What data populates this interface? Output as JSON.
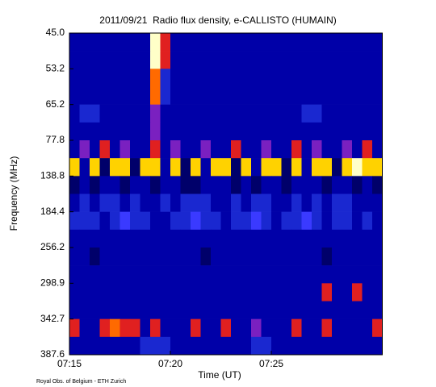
{
  "chart_data": {
    "type": "heatmap",
    "title": "2011/09/21  Radio flux density, e-CALLISTO (HUMAIN)",
    "x_label": "Time (UT)",
    "y_label": "Frequency (MHz)",
    "footer": "Royal Obs. of Belgium - ETH Zurich",
    "xlim": [
      0,
      15.5
    ],
    "xticks": [
      {
        "value": 0,
        "label": "07:15"
      },
      {
        "value": 5,
        "label": "07:20"
      },
      {
        "value": 10,
        "label": "07:25"
      }
    ],
    "yticks": [
      {
        "value": 45,
        "label": "45.0"
      },
      {
        "value": 53.2,
        "label": "53.2"
      },
      {
        "value": 65.2,
        "label": "65.2"
      },
      {
        "value": 77.8,
        "label": "77.8"
      },
      {
        "value": 138.8,
        "label": "138.8"
      },
      {
        "value": 184.4,
        "label": "184.4"
      },
      {
        "value": 256.2,
        "label": "256.2"
      },
      {
        "value": 298.9,
        "label": "298.9"
      },
      {
        "value": 342.7,
        "label": "342.7"
      },
      {
        "value": 387.6,
        "label": "387.6"
      }
    ],
    "x": [
      0,
      0.5,
      1,
      1.5,
      2,
      2.5,
      3,
      3.5,
      4,
      4.5,
      5,
      5.5,
      6,
      6.5,
      7,
      7.5,
      8,
      8.5,
      9,
      9.5,
      10,
      10.5,
      11,
      11.5,
      12,
      12.5,
      13,
      13.5,
      14,
      14.5,
      15
    ],
    "colorscale": [
      "#000000",
      "#00006a",
      "#0000a8",
      "#1a28d0",
      "#3a3aff",
      "#7a20c0",
      "#e02020",
      "#ff6a00",
      "#ffd200",
      "#ffffc8"
    ],
    "z": [
      [
        2,
        2,
        2,
        2,
        2,
        2,
        2,
        2,
        9,
        6,
        2,
        2,
        2,
        2,
        2,
        2,
        2,
        2,
        2,
        2,
        2,
        2,
        2,
        2,
        2,
        2,
        2,
        2,
        2,
        2,
        2
      ],
      [
        2,
        2,
        2,
        2,
        2,
        2,
        2,
        2,
        9,
        6,
        2,
        2,
        2,
        2,
        2,
        2,
        2,
        2,
        2,
        2,
        2,
        2,
        2,
        2,
        2,
        2,
        2,
        2,
        2,
        2,
        2
      ],
      [
        2,
        2,
        2,
        2,
        2,
        2,
        2,
        2,
        7,
        3,
        2,
        2,
        2,
        2,
        2,
        2,
        2,
        2,
        2,
        2,
        2,
        2,
        2,
        2,
        2,
        2,
        2,
        2,
        2,
        2,
        2
      ],
      [
        2,
        2,
        2,
        2,
        2,
        2,
        2,
        2,
        7,
        3,
        2,
        2,
        2,
        2,
        2,
        2,
        2,
        2,
        2,
        2,
        2,
        2,
        2,
        2,
        2,
        2,
        2,
        2,
        2,
        2,
        2
      ],
      [
        2,
        3,
        3,
        2,
        2,
        2,
        2,
        2,
        5,
        2,
        2,
        2,
        2,
        2,
        2,
        2,
        2,
        2,
        2,
        2,
        2,
        2,
        2,
        3,
        3,
        2,
        2,
        2,
        2,
        2,
        2
      ],
      [
        2,
        2,
        2,
        2,
        2,
        2,
        2,
        2,
        5,
        2,
        2,
        2,
        2,
        2,
        2,
        2,
        2,
        2,
        2,
        2,
        2,
        2,
        2,
        2,
        2,
        2,
        2,
        2,
        2,
        2,
        2
      ],
      [
        2,
        5,
        2,
        6,
        2,
        5,
        2,
        2,
        6,
        2,
        5,
        2,
        2,
        5,
        2,
        2,
        6,
        2,
        2,
        5,
        2,
        2,
        6,
        2,
        5,
        2,
        2,
        5,
        2,
        6,
        2
      ],
      [
        8,
        2,
        8,
        1,
        8,
        8,
        1,
        8,
        8,
        2,
        8,
        1,
        8,
        2,
        8,
        8,
        1,
        8,
        2,
        8,
        8,
        1,
        8,
        2,
        8,
        8,
        1,
        8,
        9,
        8,
        8
      ],
      [
        1,
        2,
        1,
        2,
        2,
        1,
        2,
        2,
        1,
        2,
        2,
        1,
        1,
        2,
        2,
        2,
        1,
        2,
        1,
        2,
        2,
        1,
        2,
        2,
        2,
        1,
        2,
        2,
        1,
        2,
        1
      ],
      [
        2,
        3,
        2,
        3,
        3,
        2,
        3,
        2,
        2,
        3,
        2,
        3,
        3,
        3,
        2,
        2,
        3,
        2,
        3,
        3,
        2,
        2,
        3,
        2,
        3,
        2,
        3,
        3,
        2,
        2,
        2
      ],
      [
        3,
        3,
        3,
        2,
        3,
        4,
        3,
        3,
        2,
        2,
        3,
        3,
        4,
        3,
        3,
        2,
        3,
        3,
        4,
        3,
        2,
        3,
        3,
        4,
        3,
        2,
        3,
        3,
        2,
        3,
        2
      ],
      [
        2,
        2,
        2,
        2,
        2,
        2,
        2,
        2,
        2,
        2,
        2,
        2,
        2,
        2,
        2,
        2,
        2,
        2,
        2,
        2,
        2,
        2,
        2,
        2,
        2,
        2,
        2,
        2,
        2,
        2,
        2
      ],
      [
        2,
        2,
        1,
        2,
        2,
        2,
        2,
        2,
        2,
        2,
        2,
        2,
        2,
        1,
        2,
        2,
        2,
        2,
        2,
        2,
        2,
        2,
        2,
        2,
        2,
        1,
        2,
        2,
        2,
        2,
        2
      ],
      [
        2,
        2,
        2,
        2,
        2,
        2,
        2,
        2,
        2,
        2,
        2,
        2,
        2,
        2,
        2,
        2,
        2,
        2,
        2,
        2,
        2,
        2,
        2,
        2,
        2,
        2,
        2,
        2,
        2,
        2,
        2
      ],
      [
        2,
        2,
        2,
        2,
        2,
        2,
        2,
        2,
        2,
        2,
        2,
        2,
        2,
        2,
        2,
        2,
        2,
        2,
        2,
        2,
        2,
        2,
        2,
        2,
        2,
        6,
        2,
        2,
        6,
        2,
        2
      ],
      [
        2,
        2,
        2,
        2,
        2,
        2,
        2,
        2,
        2,
        2,
        2,
        2,
        2,
        2,
        2,
        2,
        2,
        2,
        2,
        2,
        2,
        2,
        2,
        2,
        2,
        2,
        2,
        2,
        2,
        2,
        2
      ],
      [
        6,
        2,
        2,
        6,
        7,
        6,
        6,
        2,
        6,
        2,
        2,
        2,
        6,
        2,
        2,
        6,
        2,
        2,
        5,
        2,
        2,
        2,
        6,
        2,
        2,
        6,
        2,
        2,
        2,
        2,
        6
      ],
      [
        2,
        2,
        2,
        2,
        2,
        2,
        2,
        3,
        3,
        3,
        2,
        2,
        2,
        2,
        2,
        2,
        2,
        2,
        3,
        3,
        2,
        2,
        2,
        2,
        2,
        2,
        2,
        2,
        2,
        2,
        2
      ]
    ]
  }
}
